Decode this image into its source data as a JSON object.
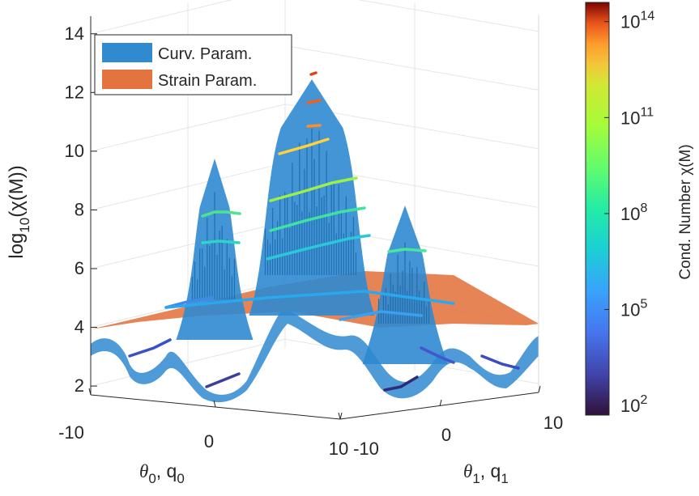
{
  "chart_data": {
    "type": "surface",
    "z_axis": {
      "label_prefix": "log",
      "label_sub": "10",
      "label_suffix": "(χ(M))",
      "ticks": [
        2,
        4,
        6,
        8,
        10,
        12,
        14
      ],
      "lim": [
        1.7,
        14.6
      ]
    },
    "x_axis": {
      "label_theta": "θ",
      "label_sub": "0",
      "label_q": ", q",
      "label_qsub": "0",
      "tick_labels": [
        "-10",
        "0",
        "10"
      ],
      "lim": [
        -10,
        10
      ]
    },
    "y_axis": {
      "label_theta": "θ",
      "label_sub": "1",
      "label_q": ", q",
      "label_qsub": "1",
      "tick_labels": [
        "-10",
        "0",
        "10"
      ],
      "lim": [
        -10,
        10
      ]
    },
    "legend": {
      "position": "top-left",
      "entries": [
        {
          "label": "Curv. Param.",
          "color": "#2f8ad0"
        },
        {
          "label": "Strain Param.",
          "color": "#e3733f"
        }
      ]
    },
    "colorbar": {
      "label": "Cond. Number χ(M)",
      "scale": "log",
      "range_exp": [
        1.7,
        14.6
      ],
      "tick_base": "10",
      "tick_exponents": [
        "2",
        "5",
        "8",
        "11",
        "14"
      ],
      "colormap": "turbo"
    },
    "grid": true,
    "series": [
      {
        "name": "Curv. Param.",
        "peaks_log10": [
          10.3,
          13.0,
          8.7
        ],
        "typical_floor_log10": [
          2.0,
          3.5
        ]
      },
      {
        "name": "Strain Param.",
        "range_log10": [
          3.9,
          5.9
        ]
      }
    ]
  }
}
